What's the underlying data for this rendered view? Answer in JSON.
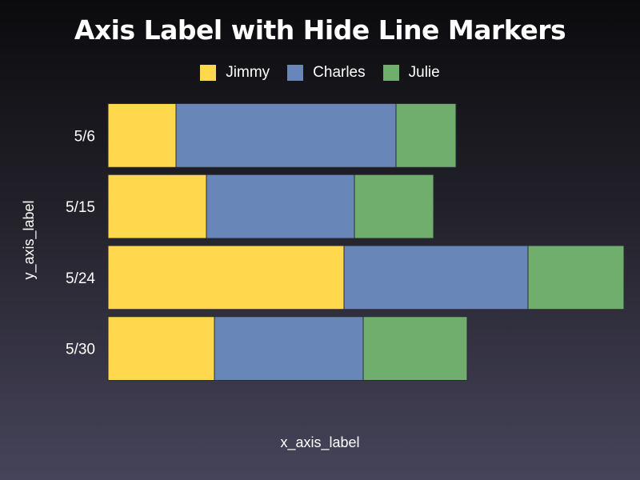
{
  "chart_data": {
    "type": "bar",
    "orientation": "horizontal",
    "stacked": true,
    "title": "Axis Label with Hide Line Markers",
    "xlabel": "x_axis_label",
    "ylabel": "y_axis_label",
    "categories": [
      "5/6",
      "5/15",
      "5/24",
      "5/30"
    ],
    "series": [
      {
        "name": "Jimmy",
        "color": "#ffd84e",
        "values": [
          85,
          123,
          295,
          133
        ]
      },
      {
        "name": "Charles",
        "color": "#6887b8",
        "values": [
          275,
          185,
          230,
          186
        ]
      },
      {
        "name": "Julie",
        "color": "#70ae6e",
        "values": [
          75,
          99,
          120,
          130
        ]
      }
    ],
    "xlim": [
      0,
      645
    ],
    "legend_position": "top-center",
    "grid": false
  }
}
